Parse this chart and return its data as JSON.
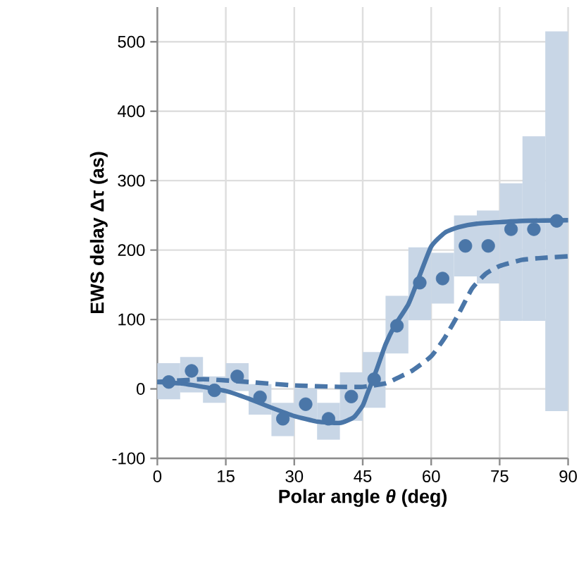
{
  "chart_data": {
    "type": "scatter",
    "xlabel": "Polar angle *θ* (deg)",
    "ylabel": "EWS delay Δτ (as)",
    "xlim": [
      0,
      90
    ],
    "ylim": [
      -100,
      550
    ],
    "xticks": [
      0,
      15,
      30,
      45,
      60,
      75,
      90
    ],
    "yticks": [
      -100,
      0,
      100,
      200,
      300,
      400,
      500
    ],
    "grid": true,
    "series": [
      {
        "type": "bar",
        "color": "#c8d6e6",
        "x": [
          2.5,
          7.5,
          12.5,
          17.5,
          22.5,
          27.5,
          32.5,
          37.5,
          42.5,
          47.5,
          52.5,
          57.5,
          62.5,
          67.5,
          72.5,
          77.5,
          82.5,
          87.5
        ],
        "base": [
          -15,
          -5,
          -20,
          -3,
          -37,
          -68,
          -43,
          -73,
          -46,
          -27,
          51,
          99,
          123,
          162,
          152,
          98,
          98,
          -32
        ],
        "values": [
          52,
          51,
          38,
          40,
          44,
          48,
          44,
          53,
          70,
          80,
          83,
          105,
          73,
          88,
          105,
          198,
          266,
          547
        ]
      },
      {
        "color": "#4a76a8",
        "marker": "circle",
        "x": [
          2.5,
          7.5,
          12.5,
          17.5,
          22.5,
          27.5,
          32.5,
          37.5,
          42.5,
          47.5,
          52.5,
          57.5,
          62.5,
          67.5,
          72.5,
          77.5,
          82.5,
          87.5
        ],
        "values": [
          10,
          26,
          -2,
          18,
          -12,
          -43,
          -22,
          -43,
          -11,
          14,
          91,
          153,
          159,
          206,
          206,
          230,
          230,
          242
        ]
      },
      {
        "type": "line",
        "color": "#4a76a8",
        "line_style": "solid",
        "marker": "none",
        "x": [
          0,
          5,
          10,
          15,
          20,
          25,
          30,
          35,
          40,
          43,
          45,
          46,
          48,
          50,
          52,
          55,
          57,
          60,
          63,
          66,
          70,
          80,
          90
        ],
        "values": [
          10,
          8,
          3,
          -3,
          -14,
          -27,
          -39,
          -47,
          -49,
          -41,
          -24,
          -7,
          27,
          64,
          91,
          122,
          155,
          205,
          225,
          233,
          238,
          242,
          243
        ]
      },
      {
        "type": "line",
        "color": "#4a76a8",
        "line_style": "dashed",
        "marker": "none",
        "x": [
          0,
          10,
          20,
          30,
          40,
          45,
          50,
          53,
          56,
          60,
          63,
          66,
          69,
          72,
          75,
          80,
          85,
          90
        ],
        "values": [
          10,
          14,
          10,
          5,
          3,
          3,
          8,
          17,
          27,
          47,
          74,
          108,
          145,
          166,
          177,
          186,
          189,
          191
        ]
      }
    ]
  }
}
